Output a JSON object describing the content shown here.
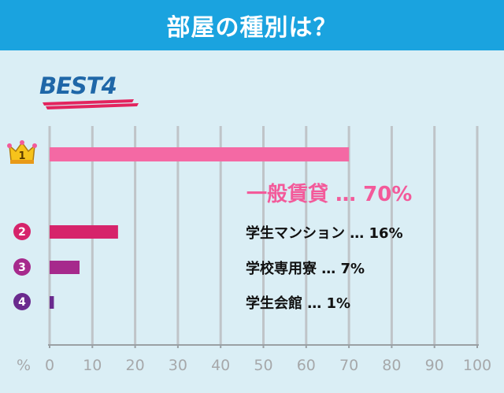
{
  "header": {
    "title": "部屋の種別は？"
  },
  "badge": {
    "label": "BEST4"
  },
  "chart_data": {
    "type": "bar",
    "orientation": "horizontal",
    "categories": [
      "一般賃貸",
      "学生マンション",
      "学校専用寮",
      "学生会館"
    ],
    "values": [
      70,
      16,
      7,
      1
    ],
    "value_suffix": "%",
    "ranks": [
      "1",
      "2",
      "3",
      "4"
    ],
    "separator": "…",
    "x_unit_label": "%",
    "xlim": [
      0,
      100
    ],
    "ticks": [
      "0",
      "10",
      "20",
      "30",
      "40",
      "50",
      "60",
      "70",
      "80",
      "90",
      "100"
    ],
    "bar_colors": [
      "#f469a4",
      "#d6246b",
      "#a62a8c",
      "#6a2a8e"
    ],
    "annotation_colors": {
      "first": "#f35a9a",
      "other": "#111111"
    },
    "grid": true
  }
}
